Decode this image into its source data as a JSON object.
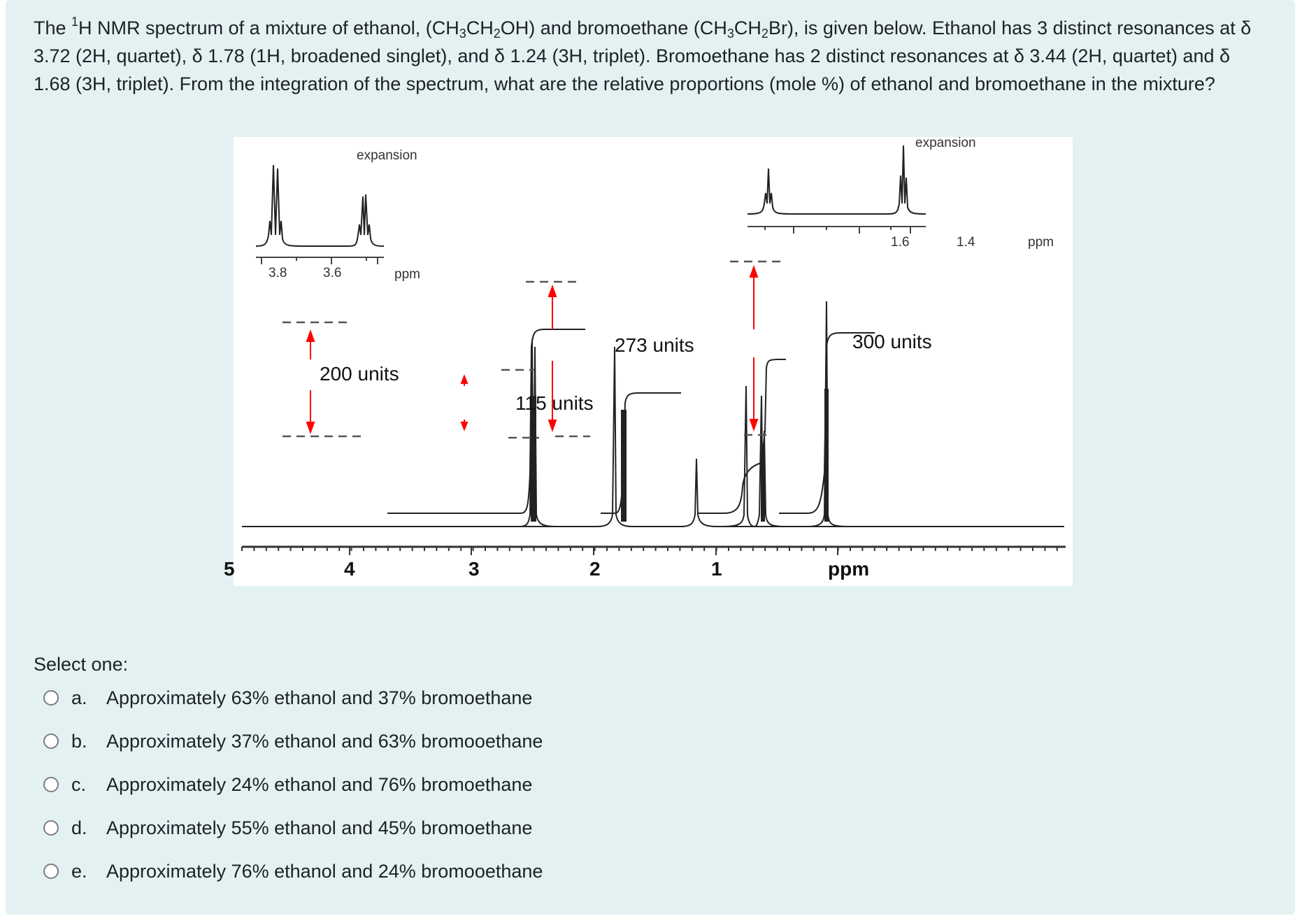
{
  "question": {
    "text_parts": {
      "p1": "The ",
      "sup1": "1",
      "p2": "H NMR spectrum of a mixture of ethanol, (CH",
      "sub1": "3",
      "p3": "CH",
      "sub2": "2",
      "p4": "OH) and bromoethane (CH",
      "sub3": "3",
      "p5": "CH",
      "sub4": "2",
      "p6": "Br), is given below.  Ethanol has 3 distinct resonances at δ 3.72 (2H, quartet), δ 1.78 (1H, broadened singlet), and δ 1.24 (3H, triplet).  Bromoethane has 2 distinct resonances at δ 3.44 (2H, quartet) and δ 1.68 (3H, triplet).  From the integration of the spectrum, what are the relative proportions (mole %) of ethanol and bromoethane in the mixture?"
    }
  },
  "figure": {
    "expansion_left": {
      "label": "expansion",
      "ticks": [
        "3.8",
        "3.6",
        "ppm"
      ]
    },
    "expansion_right": {
      "label": "expansion",
      "ticks": [
        "1.6",
        "1.4",
        "ppm"
      ]
    },
    "integrals": [
      {
        "label": "200 units",
        "position_ppm": 3.72
      },
      {
        "label": "115 units",
        "position_ppm": 3.44
      },
      {
        "label": "273 units",
        "position_ppm": 1.72
      },
      {
        "label": "300 units",
        "position_ppm": 1.24
      }
    ],
    "main_axis": {
      "ticks": [
        "5",
        "4",
        "3",
        "2",
        "1",
        "ppm"
      ]
    },
    "arrow_color": "#ff0000"
  },
  "prompt": "Select one:",
  "options": [
    {
      "letter": "a.",
      "text": "Approximately 63% ethanol and 37% bromoethane"
    },
    {
      "letter": "b.",
      "text": "Approximately 37% ethanol and 63% bromooethane"
    },
    {
      "letter": "c.",
      "text": "Approximately 24% ethanol and 76% bromoethane"
    },
    {
      "letter": "d.",
      "text": "Approximately 55% ethanol and 45% bromoethane"
    },
    {
      "letter": "e.",
      "text": "Approximately 76% ethanol and 24% bromooethane"
    }
  ]
}
